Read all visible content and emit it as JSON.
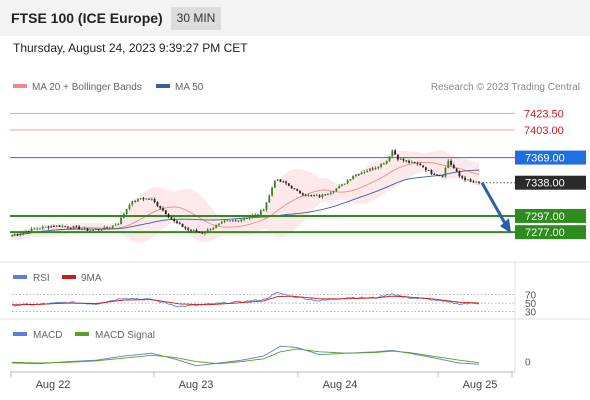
{
  "header": {
    "title": "FTSE 100 (ICE Europe)",
    "timeframe": "30 MIN"
  },
  "datetime": "Thursday, August 24, 2023 9:39:27 PM CET",
  "credit": "Research © 2023 Trading Central",
  "colors": {
    "ma20": "#f08a8a",
    "ma50": "#3a5f9e",
    "support": "#2e8b1e",
    "resistance": "#f4a0a0",
    "pivot": "#3a6fb0",
    "up": "#3a7d2a",
    "down": "#222222",
    "rsi": "#5b7fd6",
    "rsi_ma": "#cc1b1b",
    "macd": "#5b7fd6",
    "macd_signal": "#5aa01e",
    "arrow": "#2b5fa8",
    "label_blue": "#1f6fe0",
    "label_green": "#2e8b1e"
  },
  "chart_data": [
    {
      "type": "candlestick",
      "legend": [
        {
          "label": "MA 20 + Bollinger Bands",
          "color": "#f08a8a"
        },
        {
          "label": "MA 50",
          "color": "#3a5f9e"
        }
      ],
      "ylim": [
        7255,
        7440
      ],
      "levels": [
        {
          "value": 7423.5,
          "label": "7423.50",
          "kind": "resistance"
        },
        {
          "value": 7403.0,
          "label": "7403.00",
          "kind": "resistance"
        },
        {
          "value": 7369.0,
          "label": "7369.00",
          "kind": "pivot"
        },
        {
          "value": 7297.0,
          "label": "7297.00",
          "kind": "support"
        },
        {
          "value": 7277.0,
          "label": "7277.00",
          "kind": "support"
        }
      ],
      "last_price": {
        "value": 7338.0,
        "label": "7338.00"
      },
      "x_ticks": [
        "Aug 22",
        "Aug 23",
        "Aug 24",
        "Aug 25"
      ],
      "anchors": [
        [
          0,
          7273
        ],
        [
          8,
          7281
        ],
        [
          15,
          7285
        ],
        [
          22,
          7283
        ],
        [
          28,
          7279
        ],
        [
          34,
          7282
        ],
        [
          38,
          7288
        ],
        [
          42,
          7312
        ],
        [
          46,
          7319
        ],
        [
          50,
          7317
        ],
        [
          54,
          7304
        ],
        [
          58,
          7290
        ],
        [
          63,
          7280
        ],
        [
          68,
          7276
        ],
        [
          72,
          7283
        ],
        [
          76,
          7290
        ],
        [
          80,
          7291
        ],
        [
          84,
          7295
        ],
        [
          88,
          7299
        ],
        [
          90,
          7306
        ],
        [
          92,
          7322
        ],
        [
          94,
          7342
        ],
        [
          98,
          7337
        ],
        [
          102,
          7327
        ],
        [
          106,
          7322
        ],
        [
          110,
          7321
        ],
        [
          114,
          7327
        ],
        [
          118,
          7335
        ],
        [
          122,
          7347
        ],
        [
          126,
          7352
        ],
        [
          130,
          7357
        ],
        [
          134,
          7365
        ],
        [
          136,
          7378
        ],
        [
          138,
          7368
        ],
        [
          142,
          7363
        ],
        [
          146,
          7360
        ],
        [
          150,
          7350
        ],
        [
          154,
          7347
        ],
        [
          156,
          7365
        ],
        [
          160,
          7346
        ],
        [
          164,
          7339
        ],
        [
          168,
          7337
        ]
      ],
      "n_candles": 168
    },
    {
      "type": "line",
      "legend": [
        {
          "label": "RSI",
          "color": "#5b7fd6"
        },
        {
          "label": "9MA",
          "color": "#cc1b1b"
        }
      ],
      "levels": [
        {
          "value": 70,
          "label": "70"
        },
        {
          "value": 50,
          "label": "50"
        },
        {
          "value": 30,
          "label": "30"
        }
      ],
      "ylim": [
        20,
        85
      ],
      "rsi_anchors": [
        [
          0,
          45
        ],
        [
          10,
          47
        ],
        [
          20,
          52
        ],
        [
          30,
          48
        ],
        [
          40,
          62
        ],
        [
          50,
          58
        ],
        [
          60,
          42
        ],
        [
          70,
          47
        ],
        [
          80,
          52
        ],
        [
          90,
          58
        ],
        [
          95,
          74
        ],
        [
          100,
          66
        ],
        [
          110,
          55
        ],
        [
          120,
          63
        ],
        [
          130,
          62
        ],
        [
          136,
          72
        ],
        [
          140,
          64
        ],
        [
          150,
          58
        ],
        [
          160,
          48
        ],
        [
          168,
          50
        ]
      ],
      "ma_anchors": [
        [
          0,
          46
        ],
        [
          10,
          47
        ],
        [
          20,
          50
        ],
        [
          30,
          49
        ],
        [
          40,
          57
        ],
        [
          50,
          58
        ],
        [
          60,
          48
        ],
        [
          70,
          46
        ],
        [
          80,
          50
        ],
        [
          90,
          55
        ],
        [
          95,
          65
        ],
        [
          100,
          66
        ],
        [
          110,
          60
        ],
        [
          120,
          60
        ],
        [
          130,
          62
        ],
        [
          136,
          66
        ],
        [
          140,
          65
        ],
        [
          150,
          60
        ],
        [
          160,
          52
        ],
        [
          168,
          50
        ]
      ]
    },
    {
      "type": "line",
      "legend": [
        {
          "label": "MACD",
          "color": "#5b7fd6"
        },
        {
          "label": "MACD Signal",
          "color": "#5aa01e"
        }
      ],
      "levels": [
        {
          "value": 0,
          "label": "0"
        }
      ],
      "ylim": [
        -6,
        14
      ],
      "macd_anchors": [
        [
          0,
          -1
        ],
        [
          10,
          -1.5
        ],
        [
          20,
          0
        ],
        [
          30,
          1
        ],
        [
          40,
          4
        ],
        [
          50,
          6
        ],
        [
          58,
          2
        ],
        [
          66,
          -3
        ],
        [
          74,
          -1
        ],
        [
          82,
          1
        ],
        [
          90,
          4
        ],
        [
          96,
          11
        ],
        [
          102,
          10
        ],
        [
          110,
          5
        ],
        [
          120,
          6
        ],
        [
          130,
          7
        ],
        [
          136,
          8
        ],
        [
          142,
          6
        ],
        [
          150,
          3
        ],
        [
          160,
          -1
        ],
        [
          168,
          -2
        ]
      ],
      "signal_anchors": [
        [
          0,
          -0.5
        ],
        [
          10,
          -1
        ],
        [
          20,
          -0.5
        ],
        [
          30,
          0.5
        ],
        [
          40,
          2.5
        ],
        [
          50,
          4.5
        ],
        [
          58,
          3
        ],
        [
          66,
          0
        ],
        [
          74,
          -1.5
        ],
        [
          82,
          0
        ],
        [
          90,
          2
        ],
        [
          96,
          7
        ],
        [
          102,
          9
        ],
        [
          110,
          7
        ],
        [
          120,
          6
        ],
        [
          130,
          6.5
        ],
        [
          136,
          7.5
        ],
        [
          142,
          6.5
        ],
        [
          150,
          4
        ],
        [
          160,
          1
        ],
        [
          168,
          -1
        ]
      ]
    }
  ]
}
